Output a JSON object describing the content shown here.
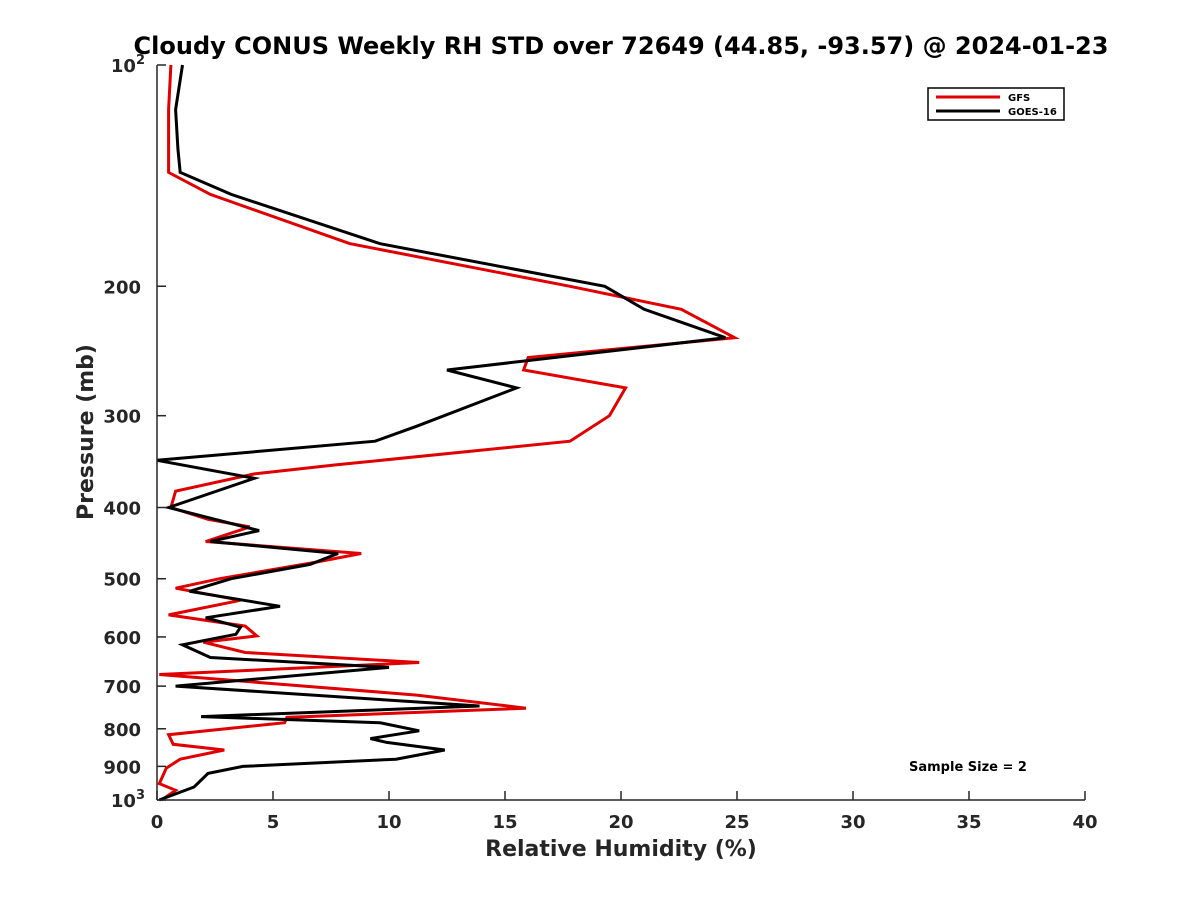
{
  "chart_data": {
    "type": "line",
    "title": "Cloudy CONUS Weekly RH STD over 72649 (44.85, -93.57) @ 2024-01-23",
    "xlabel": "Relative Humidity (%)",
    "ylabel": "Pressure (mb)",
    "xlim": [
      0,
      40
    ],
    "ylim": [
      100,
      1000
    ],
    "yscale": "log",
    "y_reversed": true,
    "grid": false,
    "legend_position": "top-right",
    "x_ticks": [
      0,
      5,
      10,
      15,
      20,
      25,
      30,
      35,
      40
    ],
    "y_ticks": [
      {
        "value": 100,
        "label": "10",
        "exp": "2"
      },
      {
        "value": 200,
        "label": "200"
      },
      {
        "value": 300,
        "label": "300"
      },
      {
        "value": 400,
        "label": "400"
      },
      {
        "value": 500,
        "label": "500"
      },
      {
        "value": 600,
        "label": "600"
      },
      {
        "value": 700,
        "label": "700"
      },
      {
        "value": 800,
        "label": "800"
      },
      {
        "value": 900,
        "label": "900"
      },
      {
        "value": 1000,
        "label": "10",
        "exp": "3"
      }
    ],
    "annotation": "Sample Size = 2",
    "series": [
      {
        "name": "GFS",
        "color": "#e00000",
        "points": [
          [
            0.6,
            100
          ],
          [
            0.5,
            115
          ],
          [
            0.5,
            130
          ],
          [
            0.5,
            140
          ],
          [
            2.3,
            150
          ],
          [
            8.3,
            175
          ],
          [
            17.8,
            200
          ],
          [
            22.6,
            215
          ],
          [
            24.9,
            235
          ],
          [
            16.0,
            250
          ],
          [
            15.8,
            260
          ],
          [
            20.2,
            275
          ],
          [
            19.5,
            300
          ],
          [
            17.8,
            325
          ],
          [
            7.7,
            350
          ],
          [
            4.2,
            360
          ],
          [
            0.8,
            380
          ],
          [
            0.6,
            400
          ],
          [
            2.2,
            415
          ],
          [
            4.0,
            425
          ],
          [
            2.1,
            445
          ],
          [
            8.8,
            462
          ],
          [
            6.8,
            475
          ],
          [
            2.7,
            500
          ],
          [
            0.8,
            515
          ],
          [
            3.6,
            535
          ],
          [
            0.5,
            560
          ],
          [
            3.8,
            580
          ],
          [
            4.3,
            598
          ],
          [
            2.0,
            610
          ],
          [
            3.8,
            630
          ],
          [
            11.3,
            650
          ],
          [
            0.1,
            675
          ],
          [
            11.2,
            720
          ],
          [
            15.9,
            750
          ],
          [
            5.6,
            772
          ],
          [
            5.5,
            785
          ],
          [
            0.5,
            815
          ],
          [
            0.7,
            840
          ],
          [
            2.9,
            855
          ],
          [
            1.0,
            880
          ],
          [
            0.4,
            905
          ],
          [
            0.1,
            950
          ],
          [
            0.8,
            970
          ],
          [
            0.2,
            1000
          ]
        ]
      },
      {
        "name": "GOES-16",
        "color": "#000000",
        "points": [
          [
            1.1,
            100
          ],
          [
            0.8,
            115
          ],
          [
            0.9,
            130
          ],
          [
            1.0,
            140
          ],
          [
            3.2,
            150
          ],
          [
            9.6,
            175
          ],
          [
            19.3,
            200
          ],
          [
            21.0,
            215
          ],
          [
            24.5,
            235
          ],
          [
            12.5,
            260
          ],
          [
            15.5,
            275
          ],
          [
            11.2,
            310
          ],
          [
            9.4,
            325
          ],
          [
            0.0,
            345
          ],
          [
            4.2,
            365
          ],
          [
            0.5,
            400
          ],
          [
            4.4,
            430
          ],
          [
            2.3,
            445
          ],
          [
            7.8,
            462
          ],
          [
            6.6,
            478
          ],
          [
            3.2,
            500
          ],
          [
            1.4,
            520
          ],
          [
            5.3,
            545
          ],
          [
            2.1,
            565
          ],
          [
            3.6,
            582
          ],
          [
            3.4,
            595
          ],
          [
            1.1,
            615
          ],
          [
            2.3,
            640
          ],
          [
            10.0,
            660
          ],
          [
            0.8,
            700
          ],
          [
            9.6,
            730
          ],
          [
            13.9,
            745
          ],
          [
            1.9,
            770
          ],
          [
            9.6,
            785
          ],
          [
            11.3,
            805
          ],
          [
            9.2,
            825
          ],
          [
            9.9,
            835
          ],
          [
            12.4,
            855
          ],
          [
            10.3,
            880
          ],
          [
            3.7,
            900
          ],
          [
            2.2,
            920
          ],
          [
            1.6,
            960
          ],
          [
            0.1,
            1000
          ]
        ]
      }
    ]
  }
}
